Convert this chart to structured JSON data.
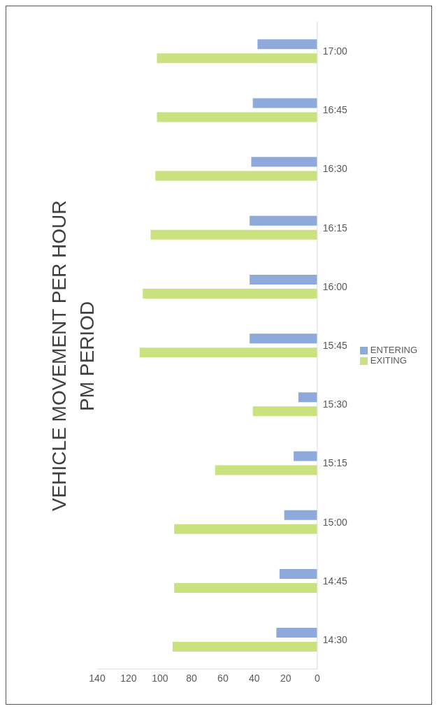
{
  "chart_data": {
    "type": "bar",
    "orientation": "horizontal",
    "title": "VEHICLE MOVEMENT PER HOUR",
    "subtitle": "PM PERIOD",
    "categories": [
      "17:00",
      "16:45",
      "16:30",
      "16:15",
      "16:00",
      "15:45",
      "15:30",
      "15:15",
      "15:00",
      "14:45",
      "14:30"
    ],
    "series": [
      {
        "name": "ENTERING",
        "color": "#8eaadb",
        "values": [
          38,
          41,
          42,
          43,
          43,
          43,
          12,
          15,
          21,
          24,
          26
        ]
      },
      {
        "name": "EXITING",
        "color": "#c9e27f",
        "values": [
          102,
          102,
          103,
          106,
          111,
          113,
          41,
          65,
          91,
          91,
          92
        ]
      }
    ],
    "xlim": [
      140,
      0
    ],
    "xticks": [
      140,
      120,
      100,
      80,
      60,
      40,
      20,
      0
    ],
    "grid": false,
    "legend": "right"
  }
}
